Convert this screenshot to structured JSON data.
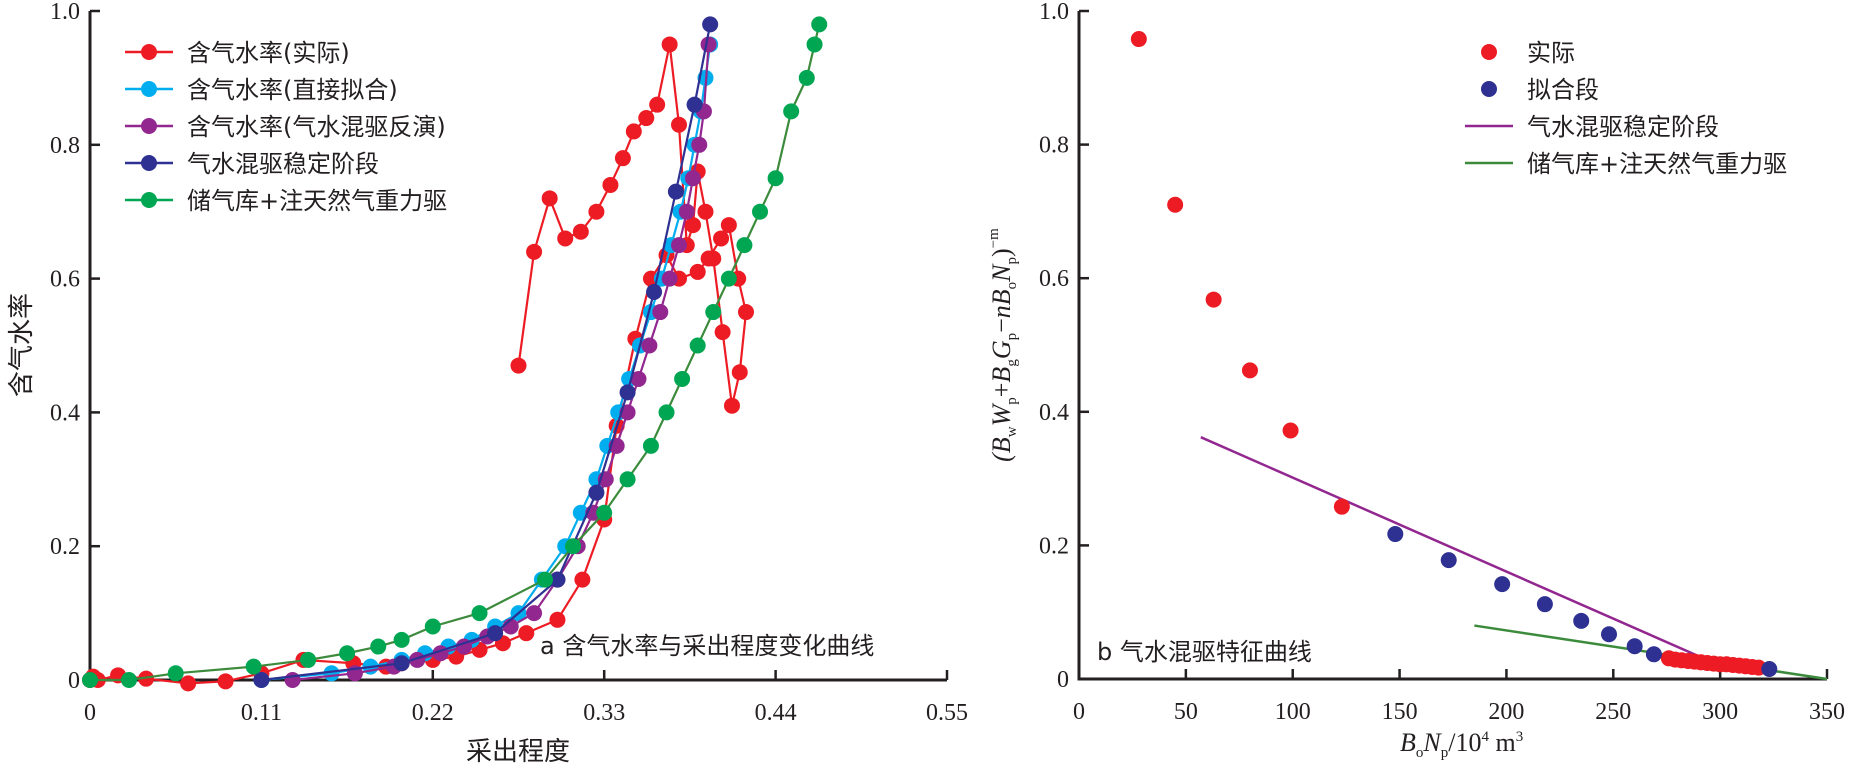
{
  "chart_data": [
    {
      "type": "line",
      "title": "",
      "annotation": "a 含气水率与采出程度变化曲线",
      "xlabel": "采出程度",
      "ylabel": "含气水率",
      "xlim": [
        0,
        0.55
      ],
      "ylim": [
        0,
        1.0
      ],
      "xticks": [
        "0",
        "0.11",
        "0.22",
        "0.33",
        "0.44",
        "0.55"
      ],
      "xtick_values": [
        0,
        0.11,
        0.22,
        0.33,
        0.44,
        0.55
      ],
      "yticks": [
        "0",
        "0.2",
        "0.4",
        "0.6",
        "0.8",
        "1.0"
      ],
      "ytick_values": [
        0,
        0.2,
        0.4,
        0.6,
        0.8,
        1.0
      ],
      "grid": false,
      "legend_position": "top-left",
      "series": [
        {
          "name": "含气水率(实际)",
          "color": "#ed1c24",
          "marker": true,
          "x": [
            0.0,
            0.002,
            0.005,
            0.018,
            0.036,
            0.063,
            0.087,
            0.11,
            0.137,
            0.169,
            0.19,
            0.2,
            0.22,
            0.235,
            0.25,
            0.265,
            0.28,
            0.3,
            0.316,
            0.33,
            0.338,
            0.35,
            0.36,
            0.37,
            0.378,
            0.39,
            0.397,
            0.405,
            0.41,
            0.416,
            0.421,
            0.417,
            0.412,
            0.406,
            0.4,
            0.395,
            0.39,
            0.387,
            0.383,
            0.378,
            0.372,
            0.364,
            0.357,
            0.349,
            0.342,
            0.334,
            0.325,
            0.315,
            0.305,
            0.295,
            0.285,
            0.275
          ],
          "y": [
            0.0,
            0.005,
            0.0,
            0.007,
            0.002,
            -0.005,
            -0.002,
            0.01,
            0.03,
            0.025,
            0.02,
            0.025,
            0.03,
            0.035,
            0.045,
            0.055,
            0.07,
            0.09,
            0.15,
            0.24,
            0.38,
            0.51,
            0.6,
            0.635,
            0.6,
            0.61,
            0.63,
            0.66,
            0.68,
            0.6,
            0.55,
            0.46,
            0.41,
            0.52,
            0.63,
            0.7,
            0.76,
            0.68,
            0.65,
            0.83,
            0.95,
            0.86,
            0.84,
            0.82,
            0.78,
            0.74,
            0.7,
            0.67,
            0.66,
            0.72,
            0.64,
            0.47
          ]
        },
        {
          "name": "含气水率(直接拟合)",
          "color": "#00aeef",
          "marker": true,
          "x": [
            0.11,
            0.155,
            0.18,
            0.2,
            0.215,
            0.23,
            0.245,
            0.26,
            0.275,
            0.29,
            0.305,
            0.315,
            0.325,
            0.332,
            0.339,
            0.346,
            0.353,
            0.36,
            0.367,
            0.373,
            0.379,
            0.384,
            0.388,
            0.392,
            0.395,
            0.398
          ],
          "y": [
            0.0,
            0.01,
            0.02,
            0.03,
            0.04,
            0.05,
            0.06,
            0.08,
            0.1,
            0.15,
            0.2,
            0.25,
            0.3,
            0.35,
            0.4,
            0.45,
            0.5,
            0.55,
            0.6,
            0.65,
            0.7,
            0.75,
            0.8,
            0.85,
            0.9,
            0.95
          ]
        },
        {
          "name": "含气水率(气水混驱反演)",
          "color": "#92278f",
          "marker": true,
          "x": [
            0.13,
            0.17,
            0.195,
            0.21,
            0.225,
            0.24,
            0.255,
            0.27,
            0.285,
            0.3,
            0.313,
            0.323,
            0.331,
            0.338,
            0.345,
            0.352,
            0.359,
            0.366,
            0.372,
            0.378,
            0.383,
            0.387,
            0.391,
            0.394,
            0.397
          ],
          "y": [
            0.0,
            0.01,
            0.02,
            0.03,
            0.04,
            0.05,
            0.065,
            0.08,
            0.1,
            0.15,
            0.2,
            0.25,
            0.3,
            0.35,
            0.4,
            0.45,
            0.5,
            0.55,
            0.6,
            0.65,
            0.7,
            0.75,
            0.8,
            0.85,
            0.95
          ]
        },
        {
          "name": "气水混驱稳定阶段",
          "color": "#2e3192",
          "marker": true,
          "x": [
            0.11,
            0.2,
            0.26,
            0.3,
            0.325,
            0.345,
            0.362,
            0.376,
            0.388,
            0.398
          ],
          "y": [
            0.0,
            0.025,
            0.07,
            0.15,
            0.28,
            0.43,
            0.58,
            0.73,
            0.86,
            0.98
          ]
        },
        {
          "name": "储气库+注天然气重力驱",
          "color": "#00a651",
          "line_color": "#3c8b3c",
          "marker": true,
          "x": [
            0.0,
            0.025,
            0.055,
            0.105,
            0.14,
            0.165,
            0.185,
            0.2,
            0.22,
            0.25,
            0.292,
            0.31,
            0.33,
            0.345,
            0.36,
            0.37,
            0.38,
            0.39,
            0.4,
            0.41,
            0.42,
            0.43,
            0.44,
            0.45,
            0.46,
            0.465,
            0.468
          ],
          "y": [
            0.0,
            0.0,
            0.01,
            0.02,
            0.03,
            0.04,
            0.05,
            0.06,
            0.08,
            0.1,
            0.15,
            0.2,
            0.25,
            0.3,
            0.35,
            0.4,
            0.45,
            0.5,
            0.55,
            0.6,
            0.65,
            0.7,
            0.75,
            0.85,
            0.9,
            0.95,
            0.98
          ]
        }
      ]
    },
    {
      "type": "scatter",
      "title": "",
      "annotation": "b 气水混驱特征曲线",
      "xlabel": "BoNp/10^4 m^3",
      "ylabel": "(BwWp+BgGp−nBoNp)^−m",
      "xlim": [
        0,
        350
      ],
      "ylim": [
        0,
        1.0
      ],
      "xticks": [
        "0",
        "50",
        "100",
        "150",
        "200",
        "250",
        "300",
        "350"
      ],
      "xtick_values": [
        0,
        50,
        100,
        150,
        200,
        250,
        300,
        350
      ],
      "yticks": [
        "0",
        "0.2",
        "0.4",
        "0.6",
        "0.8",
        "1.0"
      ],
      "ytick_values": [
        0,
        0.2,
        0.4,
        0.6,
        0.8,
        1.0
      ],
      "grid": false,
      "legend_position": "top-right",
      "series": [
        {
          "name": "实际",
          "kind": "scatter",
          "color": "#ed1c24",
          "x": [
            28,
            45,
            63,
            80,
            99,
            123,
            276,
            279,
            282,
            285,
            288,
            291,
            294,
            297,
            300,
            303,
            306,
            309,
            312,
            315,
            318
          ],
          "y": [
            0.958,
            0.71,
            0.568,
            0.462,
            0.372,
            0.258,
            0.031,
            0.029,
            0.028,
            0.027,
            0.026,
            0.025,
            0.024,
            0.023,
            0.022,
            0.022,
            0.021,
            0.02,
            0.019,
            0.018,
            0.017
          ]
        },
        {
          "name": "拟合段",
          "kind": "scatter",
          "color": "#2e3192",
          "x": [
            148,
            173,
            198,
            218,
            235,
            248,
            260,
            269,
            323
          ],
          "y": [
            0.217,
            0.178,
            0.142,
            0.112,
            0.087,
            0.067,
            0.049,
            0.037,
            0.015
          ]
        },
        {
          "name": "气水混驱稳定阶段",
          "kind": "line",
          "color": "#92278f",
          "x": [
            57,
            300
          ],
          "y": [
            0.362,
            0.02
          ]
        },
        {
          "name": "储气库+注天然气重力驱",
          "kind": "line",
          "color": "#3c8b3c",
          "x": [
            185,
            350
          ],
          "y": [
            0.08,
            0.0
          ]
        }
      ]
    }
  ],
  "labels": {
    "left_xlabel": "采出程度",
    "left_ylabel": "含气水率",
    "left_annotation": "a 含气水率与采出程度变化曲线",
    "right_annotation": "b 气水混驱特征曲线",
    "right_xlabel_B": "B",
    "right_xlabel_o": "o",
    "right_xlabel_N": "N",
    "right_xlabel_p": "p",
    "right_xlabel_unit": "/10",
    "right_xlabel_exp": "4",
    "right_xlabel_m": " m",
    "right_xlabel_exp3": "3"
  }
}
